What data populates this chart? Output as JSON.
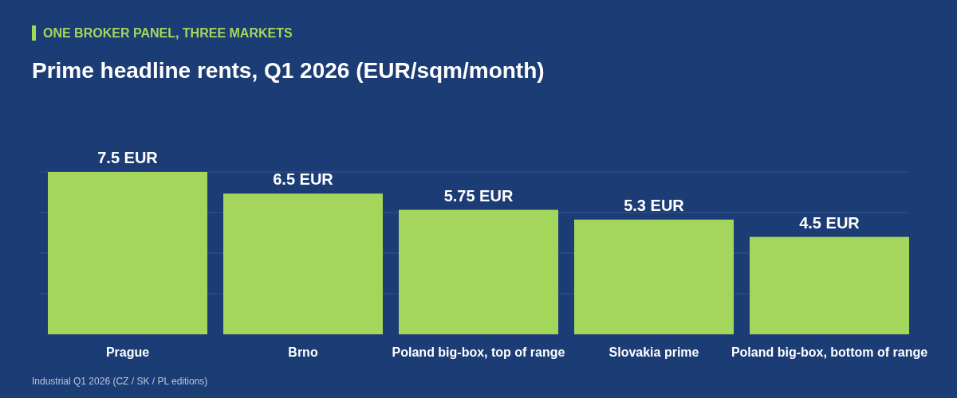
{
  "chart_data": {
    "type": "bar",
    "subtitle": "ONE BROKER PANEL, THREE MARKETS",
    "title": "Prime headline rents, Q1 2026 (EUR/sqm/month)",
    "categories": [
      "Prague",
      "Brno",
      "Poland big-box, top of range",
      "Slovakia prime",
      "Poland big-box, bottom of range"
    ],
    "values": [
      7.5,
      6.5,
      5.75,
      5.3,
      4.5
    ],
    "value_labels": [
      "7.5 EUR",
      "6.5 EUR",
      "5.75 EUR",
      "5.3 EUR",
      "4.5 EUR"
    ],
    "color": "#a5d65c",
    "ylim": [
      0,
      7.5
    ],
    "yticks": [
      {
        "value": 1.875,
        "label": null
      },
      {
        "value": 3.75,
        "label": null
      },
      {
        "value": 5.625,
        "label": null
      },
      {
        "value": 7.5,
        "label": null
      }
    ],
    "grid": "y",
    "tick_labels": "x",
    "annotations": [
      "Industrial Q1 2026 (CZ / SK / PL editions)"
    ]
  }
}
